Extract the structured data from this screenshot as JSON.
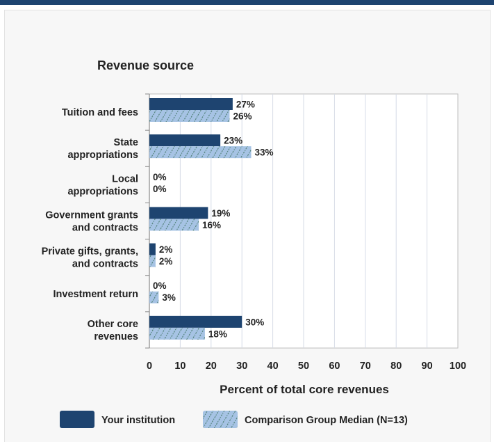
{
  "chart_data": {
    "type": "bar",
    "orientation": "horizontal",
    "title": "Revenue source",
    "xlabel": "Percent of total core revenues",
    "ylabel": "",
    "xlim": [
      0,
      100
    ],
    "x_ticks": [
      0,
      10,
      20,
      30,
      40,
      50,
      60,
      70,
      80,
      90,
      100
    ],
    "grid": true,
    "legend_position": "bottom",
    "categories": [
      [
        "Tuition and fees"
      ],
      [
        "State",
        "appropriations"
      ],
      [
        "Local",
        "appropriations"
      ],
      [
        "Government grants",
        "and contracts"
      ],
      [
        "Private gifts, grants,",
        "and contracts"
      ],
      [
        "Investment return"
      ],
      [
        "Other core",
        "revenues"
      ]
    ],
    "series": [
      {
        "name": "Your institution",
        "values": [
          27,
          23,
          0,
          19,
          2,
          0,
          30
        ],
        "labels": [
          "27%",
          "23%",
          "0%",
          "19%",
          "2%",
          "0%",
          "30%"
        ],
        "color": "#1e4470",
        "pattern": "solid"
      },
      {
        "name": "Comparison Group Median (N=13)",
        "values": [
          26,
          33,
          0,
          16,
          2,
          3,
          18
        ],
        "labels": [
          "26%",
          "33%",
          "0%",
          "16%",
          "2%",
          "3%",
          "18%"
        ],
        "color": "#a6c3e4",
        "pattern": "hatched"
      }
    ]
  }
}
